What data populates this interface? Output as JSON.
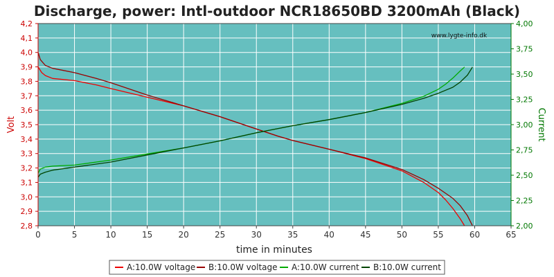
{
  "chart_data": {
    "type": "line",
    "title": "Discharge, power: Intl-outdoor NCR18650BD 3200mAh (Black)",
    "xlabel": "time in minutes",
    "ylabel_left": "Volt",
    "ylabel_right": "Current",
    "watermark": "www.lygte-info.dk",
    "xlim": [
      0,
      65
    ],
    "ylim_left": [
      2.8,
      4.2
    ],
    "ylim_right": [
      2.0,
      4.0
    ],
    "x_ticks": [
      "0",
      "5",
      "10",
      "15",
      "20",
      "25",
      "30",
      "35",
      "40",
      "45",
      "50",
      "55",
      "60",
      "65"
    ],
    "y_left_ticks": [
      "2,8",
      "2,9",
      "3,0",
      "3,1",
      "3,2",
      "3,3",
      "3,4",
      "3,5",
      "3,6",
      "3,7",
      "3,8",
      "3,9",
      "4,0",
      "4,1",
      "4,2"
    ],
    "y_right_ticks": [
      "2,00",
      "2,25",
      "2,50",
      "2,75",
      "3,00",
      "3,25",
      "3,50",
      "3,75",
      "4,00"
    ],
    "grid": true,
    "legend_position": "bottom",
    "colors": {
      "plot_bg": "#66bfbf",
      "grid": "#ffffff",
      "voltage_a": "#ee0000",
      "voltage_b": "#990000",
      "current_a": "#00aa00",
      "current_b": "#004400",
      "left_axis": "#cc0000",
      "right_axis": "#007700"
    },
    "series": [
      {
        "name": "A:10.0W voltage",
        "axis": "left",
        "x": [
          0,
          0.5,
          1,
          2,
          3,
          5,
          8,
          10,
          15,
          20,
          25,
          30,
          33,
          35,
          40,
          45,
          50,
          53,
          55,
          56,
          57,
          58,
          58.6
        ],
        "y": [
          3.9,
          3.86,
          3.84,
          3.82,
          3.815,
          3.805,
          3.775,
          3.75,
          3.69,
          3.63,
          3.555,
          3.47,
          3.42,
          3.39,
          3.33,
          3.265,
          3.18,
          3.1,
          3.03,
          2.98,
          2.92,
          2.85,
          2.8
        ]
      },
      {
        "name": "B:10.0W voltage",
        "axis": "left",
        "x": [
          0,
          0.3,
          1,
          2,
          3,
          5,
          8,
          10,
          15,
          20,
          25,
          30,
          33,
          35,
          40,
          45,
          50,
          53,
          55,
          57,
          58,
          59,
          59.7
        ],
        "y": [
          4.0,
          3.95,
          3.91,
          3.89,
          3.88,
          3.86,
          3.82,
          3.79,
          3.705,
          3.63,
          3.555,
          3.47,
          3.42,
          3.39,
          3.33,
          3.27,
          3.19,
          3.12,
          3.06,
          2.99,
          2.94,
          2.87,
          2.8
        ]
      },
      {
        "name": "A:10.0W current",
        "axis": "right",
        "x": [
          0,
          0.3,
          1,
          2,
          5,
          10,
          15,
          20,
          25,
          30,
          35,
          40,
          45,
          50,
          53,
          55,
          56,
          57,
          58,
          58.6
        ],
        "y": [
          2.52,
          2.56,
          2.58,
          2.59,
          2.6,
          2.65,
          2.71,
          2.77,
          2.84,
          2.92,
          2.99,
          3.05,
          3.12,
          3.21,
          3.28,
          3.35,
          3.4,
          3.46,
          3.53,
          3.57
        ]
      },
      {
        "name": "B:10.0W current",
        "axis": "right",
        "x": [
          0,
          0.3,
          1,
          2,
          5,
          10,
          15,
          20,
          25,
          30,
          35,
          40,
          45,
          50,
          53,
          55,
          57,
          58,
          59,
          59.7
        ],
        "y": [
          2.48,
          2.51,
          2.53,
          2.55,
          2.58,
          2.63,
          2.7,
          2.77,
          2.84,
          2.92,
          2.99,
          3.05,
          3.12,
          3.2,
          3.26,
          3.31,
          3.37,
          3.42,
          3.49,
          3.57
        ]
      }
    ]
  }
}
